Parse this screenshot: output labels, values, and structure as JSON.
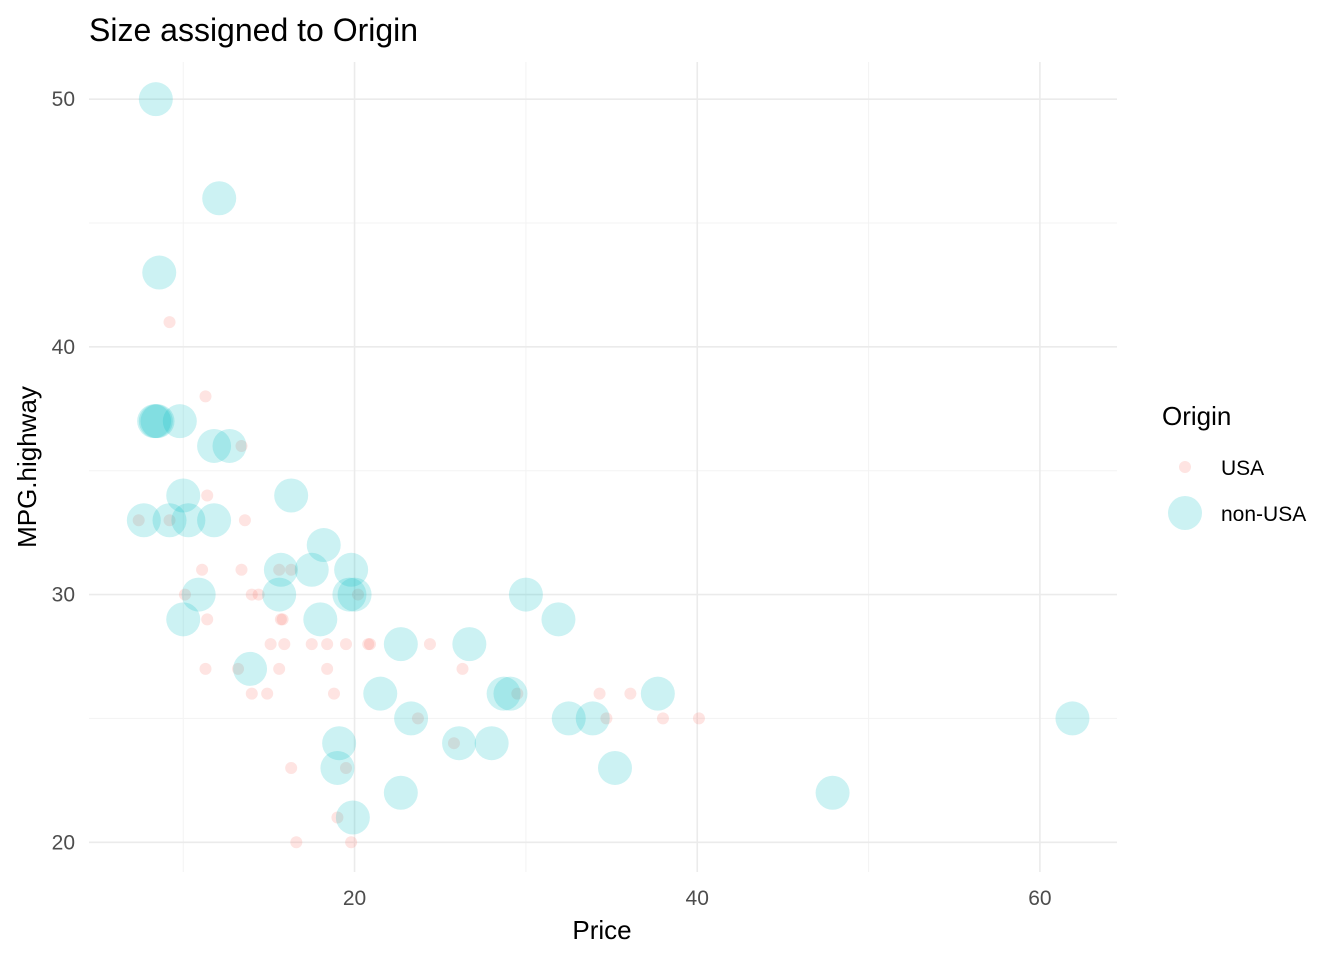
{
  "chart_data": {
    "type": "scatter",
    "title": "Size assigned to Origin",
    "xlabel": "Price",
    "ylabel": "MPG.highway",
    "xlim": [
      4.5,
      64.5
    ],
    "ylim": [
      18.8,
      51.5
    ],
    "x_ticks": [
      20,
      40,
      60
    ],
    "x_minor_ticks": [
      10,
      30,
      50
    ],
    "y_ticks": [
      20,
      30,
      40,
      50
    ],
    "y_minor_ticks": [
      25,
      35,
      45
    ],
    "grid": true,
    "legend": {
      "title": "Origin",
      "position": "right",
      "entries": [
        "USA",
        "non-USA"
      ]
    },
    "series": [
      {
        "name": "USA",
        "color": "#F8766D",
        "size": "small",
        "opacity": 0.2,
        "points": [
          [
            9.2,
            41
          ],
          [
            11.3,
            38
          ],
          [
            13.4,
            36
          ],
          [
            11.4,
            34
          ],
          [
            7.4,
            33
          ],
          [
            9.2,
            33
          ],
          [
            13.6,
            33
          ],
          [
            11.1,
            31
          ],
          [
            13.4,
            31
          ],
          [
            15.6,
            31
          ],
          [
            16.3,
            31
          ],
          [
            10.1,
            30
          ],
          [
            14.0,
            30
          ],
          [
            14.4,
            30
          ],
          [
            20.2,
            30
          ],
          [
            11.4,
            29
          ],
          [
            15.7,
            29
          ],
          [
            15.8,
            29
          ],
          [
            15.1,
            28
          ],
          [
            15.9,
            28
          ],
          [
            17.5,
            28
          ],
          [
            18.4,
            28
          ],
          [
            19.5,
            28
          ],
          [
            20.8,
            28
          ],
          [
            20.9,
            28
          ],
          [
            24.4,
            28
          ],
          [
            11.3,
            27
          ],
          [
            13.2,
            27
          ],
          [
            15.6,
            27
          ],
          [
            18.4,
            27
          ],
          [
            26.3,
            27
          ],
          [
            14.0,
            26
          ],
          [
            14.9,
            26
          ],
          [
            18.8,
            26
          ],
          [
            29.5,
            26
          ],
          [
            34.3,
            26
          ],
          [
            36.1,
            26
          ],
          [
            23.7,
            25
          ],
          [
            34.7,
            25
          ],
          [
            38.0,
            25
          ],
          [
            40.1,
            25
          ],
          [
            25.8,
            24
          ],
          [
            16.3,
            23
          ],
          [
            19.5,
            23
          ],
          [
            19.0,
            21
          ],
          [
            16.6,
            20
          ],
          [
            19.8,
            20
          ]
        ]
      },
      {
        "name": "non-USA",
        "color": "#00BFC4",
        "size": "large",
        "opacity": 0.2,
        "points": [
          [
            8.4,
            50
          ],
          [
            12.1,
            46
          ],
          [
            8.6,
            43
          ],
          [
            8.3,
            37
          ],
          [
            8.4,
            37
          ],
          [
            8.5,
            37
          ],
          [
            9.8,
            37
          ],
          [
            11.8,
            36
          ],
          [
            12.7,
            36
          ],
          [
            10.0,
            34
          ],
          [
            16.3,
            34
          ],
          [
            7.7,
            33
          ],
          [
            9.2,
            33
          ],
          [
            10.3,
            33
          ],
          [
            11.8,
            33
          ],
          [
            18.2,
            32
          ],
          [
            15.7,
            31
          ],
          [
            17.5,
            31
          ],
          [
            19.8,
            31
          ],
          [
            10.9,
            30
          ],
          [
            15.6,
            30
          ],
          [
            19.7,
            30
          ],
          [
            20.0,
            30
          ],
          [
            30.0,
            30
          ],
          [
            10.0,
            29
          ],
          [
            18.0,
            29
          ],
          [
            31.9,
            29
          ],
          [
            22.7,
            28
          ],
          [
            26.7,
            28
          ],
          [
            13.9,
            27
          ],
          [
            21.5,
            26
          ],
          [
            28.7,
            26
          ],
          [
            29.1,
            26
          ],
          [
            37.7,
            26
          ],
          [
            23.3,
            25
          ],
          [
            32.5,
            25
          ],
          [
            33.9,
            25
          ],
          [
            61.9,
            25
          ],
          [
            19.1,
            24
          ],
          [
            26.1,
            24
          ],
          [
            28.0,
            24
          ],
          [
            19.0,
            23
          ],
          [
            35.2,
            23
          ],
          [
            22.7,
            22
          ],
          [
            47.9,
            22
          ],
          [
            19.9,
            21
          ]
        ]
      }
    ]
  }
}
